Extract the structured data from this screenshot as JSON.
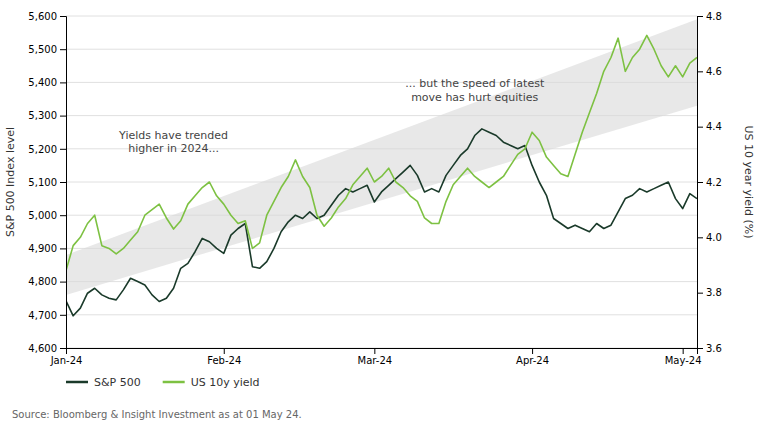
{
  "chart_data": {
    "type": "line",
    "categories": [
      "Jan-24",
      null,
      null,
      null,
      null,
      null,
      null,
      null,
      null,
      null,
      null,
      null,
      null,
      null,
      null,
      null,
      null,
      null,
      null,
      null,
      null,
      null,
      "Feb-24",
      null,
      null,
      null,
      null,
      null,
      null,
      null,
      null,
      null,
      null,
      null,
      null,
      null,
      null,
      null,
      null,
      null,
      null,
      null,
      null,
      "Mar-24",
      null,
      null,
      null,
      null,
      null,
      null,
      null,
      null,
      null,
      null,
      null,
      null,
      null,
      null,
      null,
      null,
      null,
      null,
      null,
      null,
      null,
      "Apr-24",
      null,
      null,
      null,
      null,
      null,
      null,
      null,
      null,
      null,
      null,
      null,
      null,
      null,
      null,
      null,
      null,
      null,
      null,
      null,
      null,
      "May-24",
      null,
      null
    ],
    "series": [
      {
        "name": "S&P 500",
        "color": "#1a3a2a",
        "values": [
          4742,
          4697,
          4720,
          4765,
          4780,
          4760,
          4750,
          4745,
          4775,
          4810,
          4800,
          4790,
          4760,
          4740,
          4750,
          4780,
          4840,
          4855,
          4890,
          4930,
          4920,
          4900,
          4885,
          4940,
          4960,
          4975,
          4845,
          4840,
          4860,
          4900,
          4950,
          4980,
          5000,
          4990,
          5010,
          4990,
          5000,
          5030,
          5060,
          5080,
          5070,
          5080,
          5090,
          5040,
          5070,
          5090,
          5110,
          5130,
          5150,
          5120,
          5070,
          5080,
          5070,
          5120,
          5150,
          5180,
          5200,
          5240,
          5260,
          5250,
          5240,
          5220,
          5210,
          5200,
          5210,
          5150,
          5100,
          5060,
          4990,
          4975,
          4960,
          4970,
          4960,
          4950,
          4975,
          4960,
          4970,
          5010,
          5050,
          5060,
          5080,
          5070,
          5080,
          5090,
          5100,
          5050,
          5020,
          5065,
          5050
        ]
      },
      {
        "name": "US 10y yield",
        "color": "#7dc142",
        "axis": "y2",
        "values": [
          3.88,
          3.97,
          4.0,
          4.05,
          4.08,
          3.97,
          3.96,
          3.94,
          3.96,
          3.99,
          4.02,
          4.08,
          4.1,
          4.12,
          4.07,
          4.03,
          4.06,
          4.12,
          4.15,
          4.18,
          4.2,
          4.15,
          4.12,
          4.08,
          4.05,
          4.06,
          3.96,
          3.98,
          4.08,
          4.13,
          4.18,
          4.22,
          4.28,
          4.22,
          4.18,
          4.08,
          4.04,
          4.07,
          4.11,
          4.14,
          4.19,
          4.22,
          4.25,
          4.2,
          4.22,
          4.25,
          4.2,
          4.18,
          4.15,
          4.13,
          4.07,
          4.05,
          4.05,
          4.13,
          4.19,
          4.22,
          4.25,
          4.22,
          4.2,
          4.18,
          4.2,
          4.22,
          4.26,
          4.3,
          4.32,
          4.38,
          4.35,
          4.29,
          4.26,
          4.23,
          4.22,
          4.3,
          4.38,
          4.45,
          4.52,
          4.6,
          4.65,
          4.72,
          4.6,
          4.65,
          4.68,
          4.73,
          4.68,
          4.62,
          4.58,
          4.62,
          4.58,
          4.63,
          4.65
        ]
      }
    ],
    "band": {
      "x": [
        0,
        88
      ],
      "lower": [
        4760,
        5330
      ],
      "upper": [
        4880,
        5590
      ],
      "color": "#d8d8d8"
    },
    "annotations": [
      {
        "text": "Yields have trended\nhigher in 2024...",
        "x": 15,
        "y": 5260
      },
      {
        "text": "... but the speed of latest\nmove has hurt equities",
        "x": 57,
        "y": 5415
      }
    ],
    "y_label": "S&P 500 Index level",
    "y2_label": "US 10 year yield (%)",
    "source": "Source: Bloomberg & Insight Investment as at 01 May 24.",
    "ylim": [
      4600,
      5600
    ],
    "yticks": [
      {
        "value": 4600,
        "label": "4,600"
      },
      {
        "value": 4700,
        "label": "4,700"
      },
      {
        "value": 4800,
        "label": "4,800"
      },
      {
        "value": 4900,
        "label": "4,900"
      },
      {
        "value": 5000,
        "label": "5,000"
      },
      {
        "value": 5100,
        "label": "5,100"
      },
      {
        "value": 5200,
        "label": "5,200"
      },
      {
        "value": 5300,
        "label": "5,300"
      },
      {
        "value": 5400,
        "label": "5,400"
      },
      {
        "value": 5500,
        "label": "5,500"
      },
      {
        "value": 5600,
        "label": "5,600"
      }
    ],
    "y2lim": [
      3.6,
      4.8
    ],
    "y2ticks": [
      3.6,
      3.8,
      {
        "value": 4.0,
        "label": "4.0"
      },
      4.2,
      4.4,
      4.6,
      4.8
    ],
    "grid": true,
    "legend": "bottom"
  }
}
